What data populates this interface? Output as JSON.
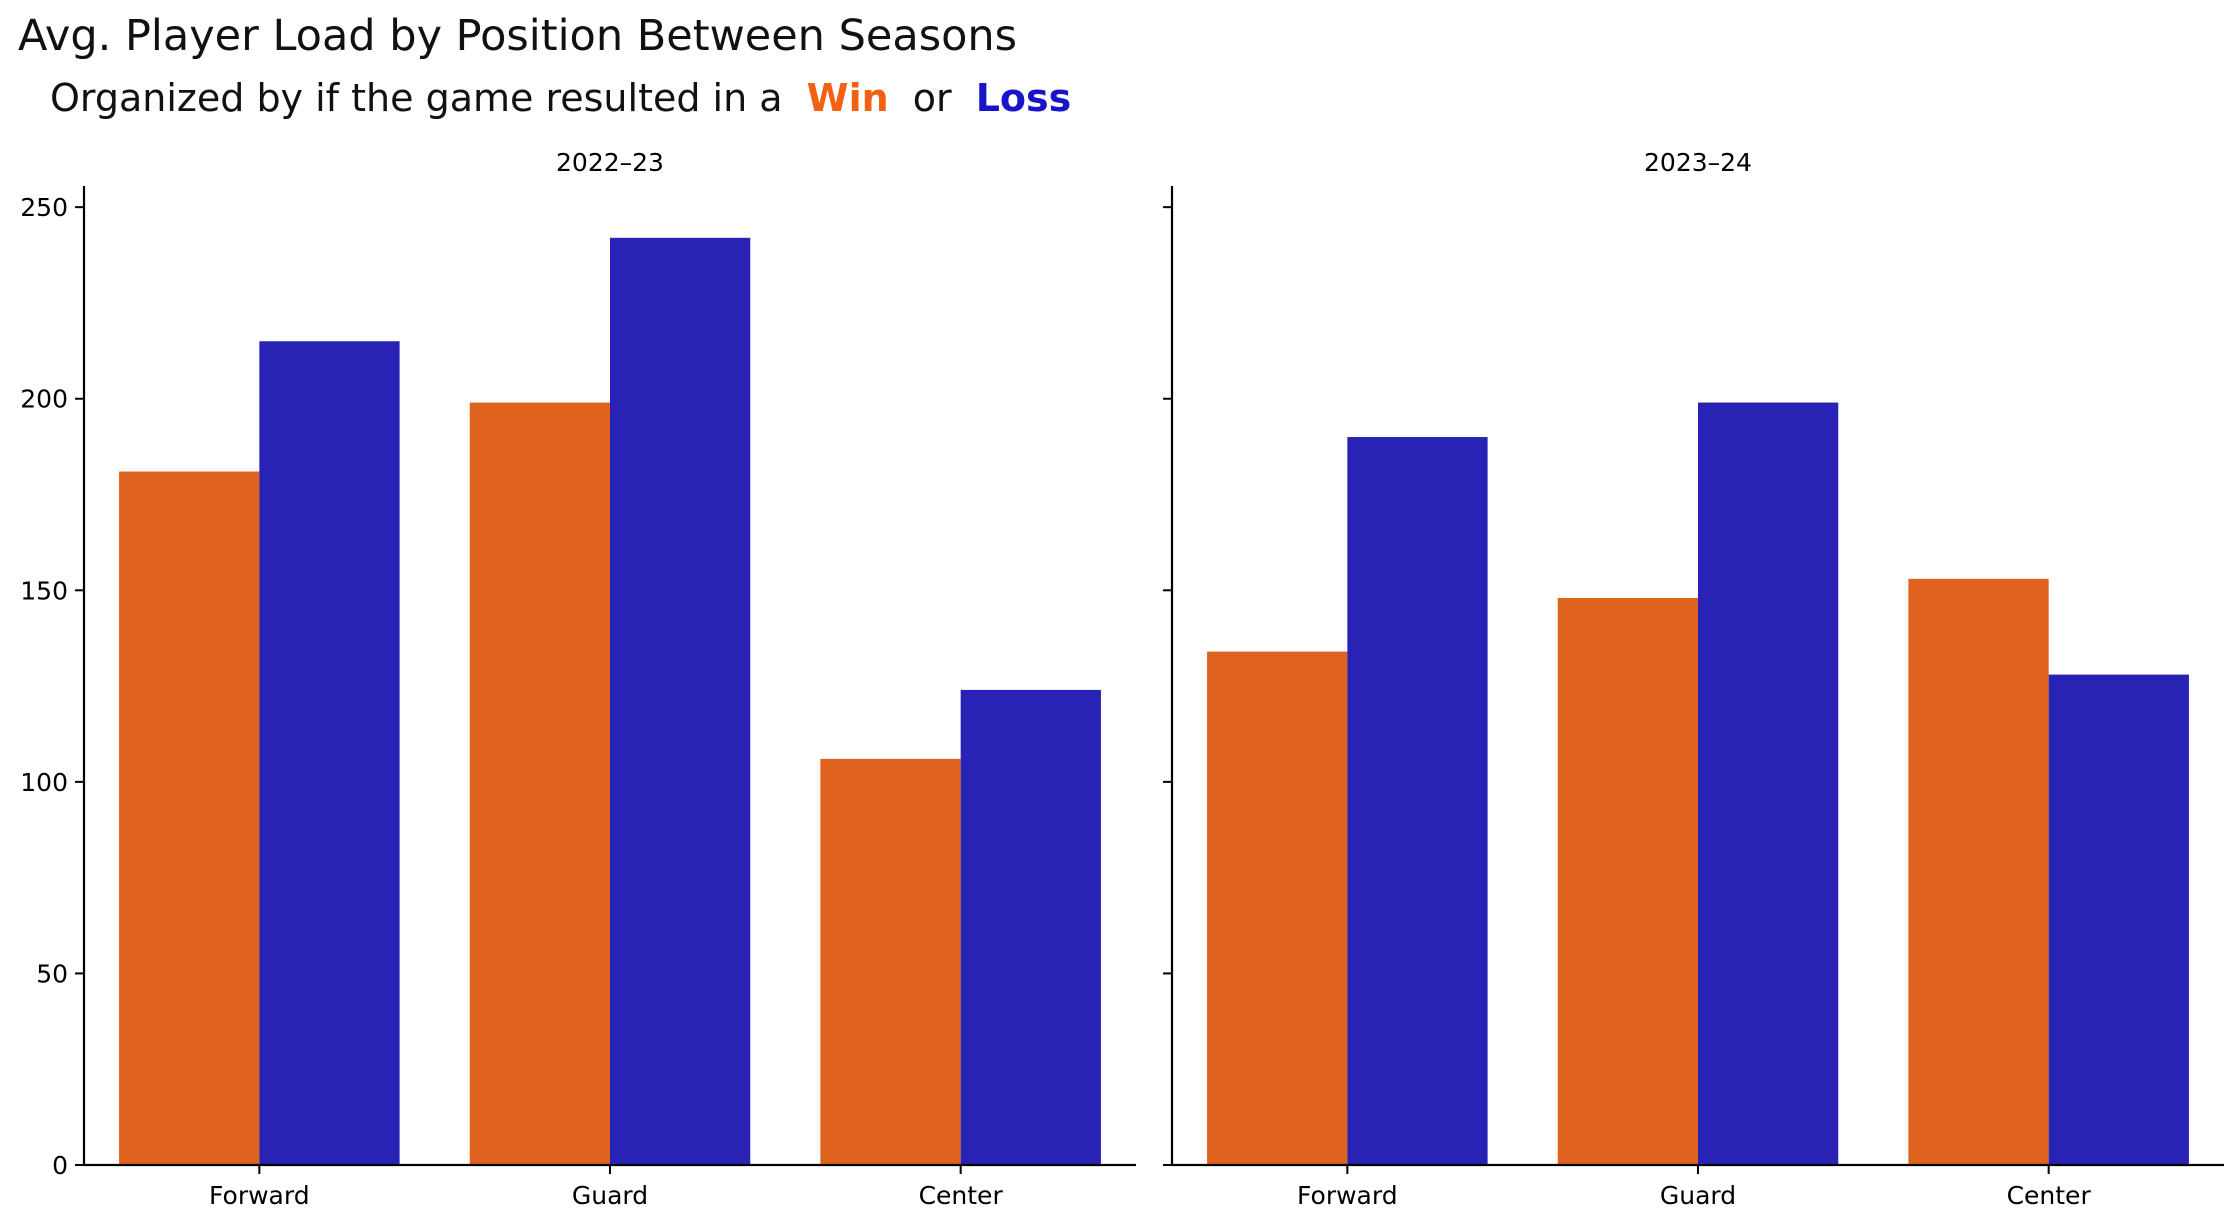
{
  "title": "Avg. Player Load by Position Between Seasons",
  "subtitle": {
    "prefix": "Organized by if the game resulted in a",
    "win_word": "Win",
    "middle": "or",
    "loss_word": "Loss"
  },
  "colors": {
    "win": "#E0621F",
    "loss": "#2923B5",
    "win_text": "#F26012",
    "loss_text": "#1A14C8"
  },
  "chart_data": [
    {
      "type": "bar",
      "title": "2022–23",
      "categories": [
        "Forward",
        "Guard",
        "Center"
      ],
      "series": [
        {
          "name": "Win",
          "values": [
            181,
            199,
            106
          ]
        },
        {
          "name": "Loss",
          "values": [
            215,
            242,
            124
          ]
        }
      ],
      "ylim": [
        0,
        255
      ],
      "yticks": [
        0,
        50,
        100,
        150,
        200,
        250
      ],
      "show_ytick_labels": true,
      "grid": false,
      "xlabel": "",
      "ylabel": ""
    },
    {
      "type": "bar",
      "title": "2023–24",
      "categories": [
        "Forward",
        "Guard",
        "Center"
      ],
      "series": [
        {
          "name": "Win",
          "values": [
            134,
            148,
            153
          ]
        },
        {
          "name": "Loss",
          "values": [
            190,
            199,
            128
          ]
        }
      ],
      "ylim": [
        0,
        255
      ],
      "yticks": [
        0,
        50,
        100,
        150,
        200,
        250
      ],
      "show_ytick_labels": false,
      "grid": false,
      "xlabel": "",
      "ylabel": ""
    }
  ]
}
